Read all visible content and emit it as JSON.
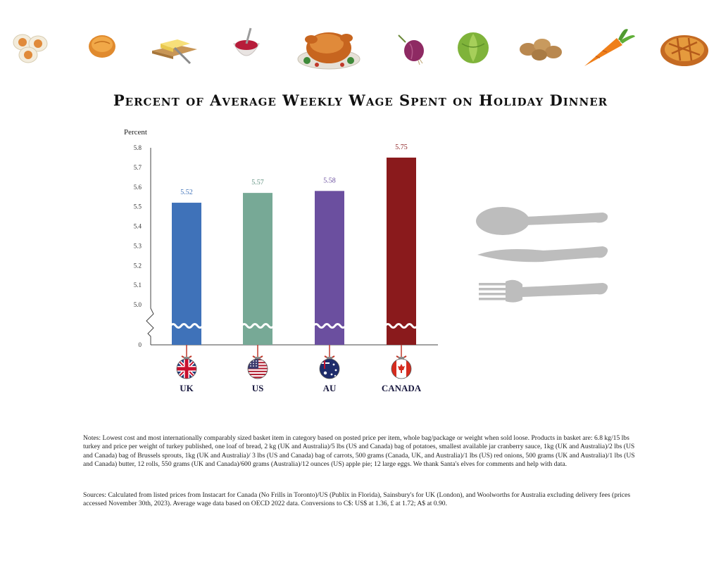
{
  "chart_data": {
    "type": "bar",
    "title": "Percent of Average Weekly Wage Spent on Holiday Dinner",
    "ylabel": "Percent",
    "xlabel": "",
    "categories": [
      "UK",
      "US",
      "AU",
      "CANADA"
    ],
    "values": [
      5.52,
      5.57,
      5.58,
      5.75
    ],
    "value_labels": [
      "5.52",
      "5.57",
      "5.58",
      "5.75"
    ],
    "ylim": [
      5.0,
      5.8
    ],
    "y_axis_break": true,
    "y_ticks": [
      "5.8",
      "5.7",
      "5.6",
      "5.5",
      "5.4",
      "5.3",
      "5.2",
      "5.1",
      "5.0",
      "0"
    ],
    "grid": false,
    "bar_colors": [
      "#3f72b9",
      "#77a996",
      "#6b4f9f",
      "#8a1a1c"
    ],
    "label_colors": [
      "#3f72b9",
      "#5e8f7e",
      "#6b4f9f",
      "#8a1a1c"
    ],
    "ornament_flags": [
      "uk-flag-ornament-icon",
      "us-flag-ornament-icon",
      "australia-flag-ornament-icon",
      "canada-flag-ornament-icon"
    ]
  },
  "decor": {
    "food_icons": [
      "eggs-icon",
      "bread-roll-icon",
      "butter-icon",
      "cranberry-sauce-icon",
      "roast-turkey-icon",
      "red-onion-icon",
      "brussels-sprout-icon",
      "potatoes-icon",
      "carrot-icon",
      "apple-pie-icon"
    ],
    "cutlery_icons": [
      "spoon-icon",
      "knife-icon",
      "fork-icon"
    ],
    "cutlery_color": "#bdbdbd"
  },
  "notes": "Notes: Lowest cost and most internationally comparably sized basket item in category based on posted price per item, whole bag/package or weight when sold loose. Products in basket are: 6.8 kg/15 lbs turkey and price per weight of turkey published, one loaf of bread, 2 kg (UK and Australia)/5 lbs (US and Canada) bag of potatoes, smallest available jar cranberry sauce, 1kg (UK and Australia)/2 lbs (US and Canada) bag of Brussels sprouts, 1kg (UK and Australia)/ 3 lbs (US and Canada) bag of carrots, 500 grams (Canada, UK, and Australia)/1 lbs (US) red onions, 500 grams (UK and Australia)/1 lbs (US and Canada) butter, 12 rolls, 550 grams (UK and Canada)/600 grams (Australia)/12 ounces (US) apple pie; 12 large eggs. We thank Santa's elves for comments and help with data.",
  "sources": "Sources: Calculated from listed prices from Instacart for Canada (No Frills in Toronto)/US (Publix in Florida), Sainsbury's for UK (London), and Woolworths for Australia excluding delivery fees (prices accessed November 30th, 2023). Average wage data based on OECD 2022 data. Conversions to C$: US$ at 1.36, £ at 1.72; A$ at 0.90."
}
